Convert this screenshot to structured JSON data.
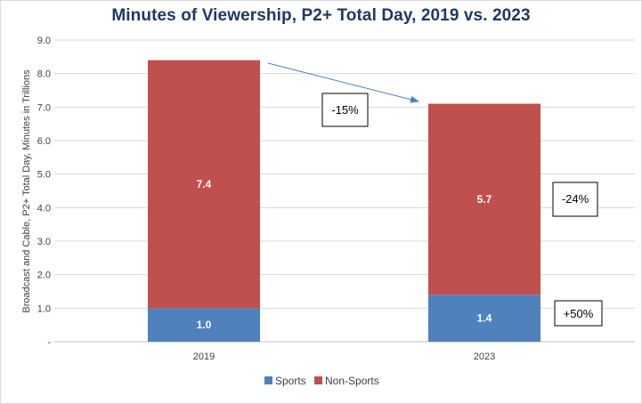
{
  "chart_data": {
    "type": "bar",
    "stacked": true,
    "title": "Minutes of Viewership, P2+ Total Day, 2019 vs. 2023",
    "ylabel": "Broadcast and Cable, P2+ Total Day, Minutes in Trillions",
    "xlabel": "",
    "categories": [
      "2019",
      "2023"
    ],
    "ylim": [
      0,
      9
    ],
    "yticks": [
      "-",
      "1.0",
      "2.0",
      "3.0",
      "4.0",
      "5.0",
      "6.0",
      "7.0",
      "8.0",
      "9.0"
    ],
    "grid": true,
    "legend_position": "bottom",
    "series": [
      {
        "name": "Sports",
        "values": [
          1.0,
          1.4
        ],
        "labels": [
          "1.0",
          "1.4"
        ],
        "color": "#4f81bd"
      },
      {
        "name": "Non-Sports",
        "values": [
          7.4,
          5.7
        ],
        "labels": [
          "7.4",
          "5.7"
        ],
        "color": "#c0504d"
      }
    ],
    "annotations": [
      {
        "text": "-15%"
      },
      {
        "text": "-24%"
      },
      {
        "text": "+50%"
      }
    ],
    "arrow_color": "#4f81bd"
  }
}
